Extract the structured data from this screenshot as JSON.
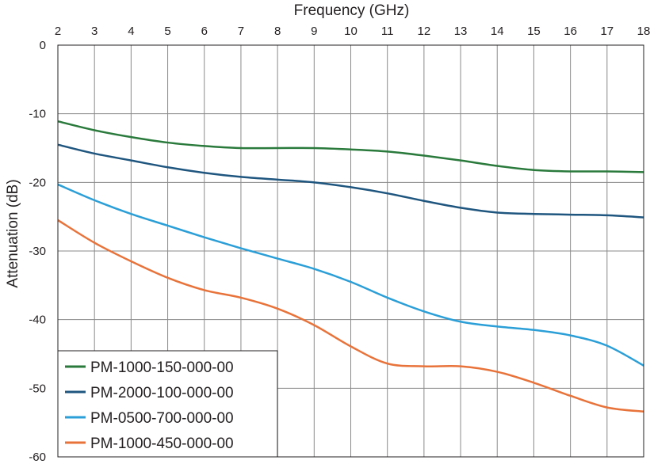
{
  "chart_data": {
    "type": "line",
    "xlabel": "Frequency (GHz)",
    "ylabel": "Attenuation (dB)",
    "xlim": [
      2,
      18
    ],
    "ylim": [
      -60,
      0
    ],
    "x_ticks": [
      "2",
      "3",
      "4",
      "5",
      "6",
      "7",
      "8",
      "9",
      "10",
      "11",
      "12",
      "13",
      "14",
      "15",
      "16",
      "17",
      "18"
    ],
    "y_ticks": [
      "0",
      "-10",
      "-20",
      "-30",
      "-40",
      "-50",
      "-60"
    ],
    "x_axis_position": "top",
    "grid": true,
    "legend_position": "bottom-left",
    "x": [
      2,
      3,
      4,
      5,
      6,
      7,
      8,
      9,
      10,
      11,
      12,
      13,
      14,
      15,
      16,
      17,
      18
    ],
    "series": [
      {
        "name": "PM-1000-150-000-00",
        "color": "#2a7a3c",
        "values": [
          -11.1,
          -12.4,
          -13.4,
          -14.2,
          -14.7,
          -15.0,
          -15.0,
          -15.0,
          -15.2,
          -15.5,
          -16.1,
          -16.8,
          -17.6,
          -18.2,
          -18.4,
          -18.4,
          -18.5
        ]
      },
      {
        "name": "PM-2000-100-000-00",
        "color": "#1f567f",
        "values": [
          -14.5,
          -15.8,
          -16.8,
          -17.8,
          -18.6,
          -19.2,
          -19.6,
          -20.0,
          -20.7,
          -21.6,
          -22.7,
          -23.7,
          -24.4,
          -24.6,
          -24.7,
          -24.8,
          -25.1
        ]
      },
      {
        "name": "PM-0500-700-000-00",
        "color": "#2b9fd7",
        "values": [
          -20.3,
          -22.6,
          -24.6,
          -26.3,
          -28.0,
          -29.6,
          -31.1,
          -32.6,
          -34.5,
          -36.8,
          -38.8,
          -40.3,
          -41.0,
          -41.5,
          -42.3,
          -43.8,
          -46.7
        ]
      },
      {
        "name": "PM-1000-450-000-00",
        "color": "#e8733a",
        "values": [
          -25.5,
          -28.8,
          -31.5,
          -33.9,
          -35.7,
          -36.8,
          -38.4,
          -40.8,
          -43.9,
          -46.4,
          -46.8,
          -46.8,
          -47.6,
          -49.2,
          -51.1,
          -52.8,
          -53.4
        ]
      }
    ]
  }
}
